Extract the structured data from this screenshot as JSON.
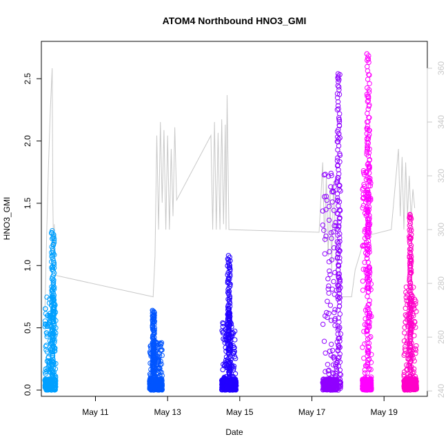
{
  "chart_data": {
    "type": "scatter",
    "title": "ATOM4 Northbound HNO3_GMI",
    "xlabel": "Date",
    "ylabel": "HNO3_GMI",
    "y2label": "",
    "x_tick_labels": [
      "May 11",
      "May 13",
      "May 15",
      "May 17",
      "May 19"
    ],
    "x_tick_days": [
      11,
      13,
      15,
      17,
      19
    ],
    "xlim_days": [
      9.5,
      20.2
    ],
    "ylim": [
      -0.05,
      2.8
    ],
    "y_ticks": [
      "0.0",
      "0.5",
      "1.0",
      "1.5",
      "2.0",
      "2.5"
    ],
    "y2lim": [
      238,
      370
    ],
    "y2_ticks": [
      "240",
      "260",
      "280",
      "300",
      "320",
      "340",
      "360"
    ],
    "grid": false,
    "legend": "none",
    "colors": {
      "right_axis_line": "#c8c8c8",
      "flight_colors": [
        "#00a0ff",
        "#0055ff",
        "#2200ff",
        "#9000ff",
        "#ff00ff",
        "#ff00c8"
      ]
    },
    "series": [
      {
        "kind": "scatter-flights",
        "flights": [
          {
            "start": 9.6,
            "end": 9.9,
            "peak_start": 9.78,
            "peak_end": 9.86,
            "peak": 1.28,
            "base_max": 0.75,
            "color_index": 0
          },
          {
            "start": 12.5,
            "end": 12.85,
            "peak_start": 12.58,
            "peak_end": 12.64,
            "peak": 0.64,
            "base_max": 0.4,
            "color_index": 1
          },
          {
            "start": 14.5,
            "end": 14.9,
            "peak_start": 14.66,
            "peak_end": 14.74,
            "peak": 1.08,
            "base_max": 0.55,
            "color_index": 2
          },
          {
            "start": 17.3,
            "end": 17.8,
            "peak_start": 17.7,
            "peak_end": 17.78,
            "peak": 2.54,
            "base_max": 1.75,
            "color_index": 3
          },
          {
            "start": 18.4,
            "end": 18.65,
            "peak_start": 18.52,
            "peak_end": 18.6,
            "peak": 2.7,
            "base_max": 1.8,
            "color_index": 4
          },
          {
            "start": 19.55,
            "end": 19.9,
            "peak_start": 19.7,
            "peak_end": 19.76,
            "peak": 1.41,
            "base_max": 0.83,
            "color_index": 5
          }
        ]
      },
      {
        "kind": "line-right-axis",
        "points": [
          [
            9.6,
            270
          ],
          [
            9.65,
            300
          ],
          [
            9.7,
            325
          ],
          [
            9.75,
            345
          ],
          [
            9.8,
            360
          ],
          [
            9.82,
            310
          ],
          [
            9.84,
            290
          ],
          [
            9.86,
            302
          ],
          [
            9.88,
            283
          ],
          [
            12.6,
            275
          ],
          [
            12.65,
            290
          ],
          [
            12.7,
            335
          ],
          [
            12.75,
            300
          ],
          [
            12.8,
            340
          ],
          [
            12.85,
            310
          ],
          [
            12.9,
            337
          ],
          [
            12.95,
            300
          ],
          [
            13.0,
            335
          ],
          [
            13.05,
            300
          ],
          [
            13.1,
            330
          ],
          [
            13.15,
            305
          ],
          [
            13.2,
            338
          ],
          [
            13.25,
            311
          ],
          [
            14.2,
            335
          ],
          [
            14.25,
            300
          ],
          [
            14.3,
            340
          ],
          [
            14.35,
            300
          ],
          [
            14.4,
            336
          ],
          [
            14.45,
            300
          ],
          [
            14.5,
            341
          ],
          [
            14.55,
            302
          ],
          [
            14.6,
            339
          ],
          [
            14.62,
            300
          ],
          [
            14.65,
            350
          ],
          [
            14.7,
            300
          ],
          [
            17.2,
            299
          ],
          [
            17.3,
            325
          ],
          [
            17.35,
            295
          ],
          [
            17.4,
            320
          ],
          [
            17.45,
            290
          ],
          [
            17.5,
            315
          ],
          [
            17.55,
            285
          ],
          [
            17.6,
            318
          ],
          [
            17.7,
            280
          ],
          [
            17.8,
            275
          ],
          [
            18.1,
            275
          ],
          [
            18.2,
            285
          ],
          [
            18.4,
            294
          ],
          [
            18.5,
            296
          ],
          [
            18.6,
            298
          ],
          [
            19.2,
            300
          ],
          [
            19.4,
            330
          ],
          [
            19.45,
            305
          ],
          [
            19.5,
            327
          ],
          [
            19.55,
            300
          ],
          [
            19.6,
            325
          ],
          [
            19.65,
            305
          ],
          [
            19.7,
            320
          ],
          [
            19.75,
            304
          ],
          [
            19.8,
            315
          ],
          [
            19.85,
            308
          ]
        ]
      }
    ]
  }
}
